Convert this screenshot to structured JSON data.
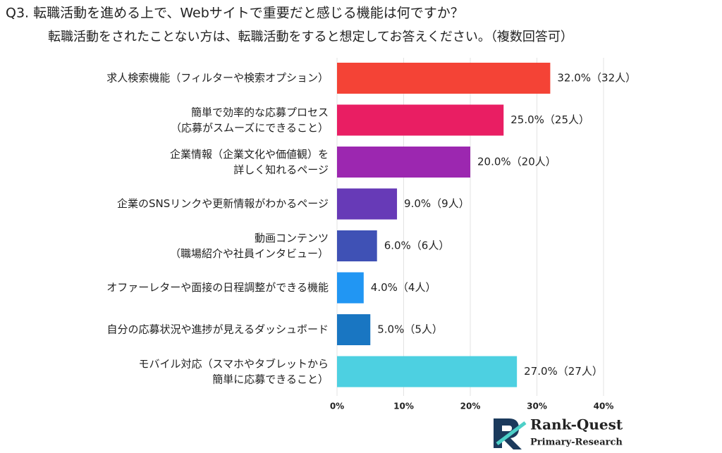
{
  "chart_data": {
    "type": "hbar",
    "title": "Q3. 転職活動を進める上で、Webサイトで重要だと感じる機能は何ですか？",
    "subtitle": "転職活動をされたことない方は、転職活動をすると想定してお答えください。（複数回答可）",
    "categories": [
      "求人検索機能（フィルターや検索オプション）",
      "簡単で効率的な応募プロセス\n（応募がスムーズにできること）",
      "企業情報（企業文化や価値観）を\n詳しく知れるページ",
      "企業のSNSリンクや更新情報がわかるページ",
      "動画コンテンツ\n（職場紹介や社員インタビュー）",
      "オファーレターや面接の日程調整ができる機能",
      "自分の応募状況や進捗が見えるダッシュボード",
      "モバイル対応（スマホやタブレットから\n簡単に応募できること）"
    ],
    "values": [
      32,
      25,
      20,
      9,
      6,
      4,
      5,
      27
    ],
    "value_labels": [
      "32.0%（32人）",
      "25.0%（25人）",
      "20.0%（20人）",
      "9.0%（9人）",
      "6.0%（6人）",
      "4.0%（4人）",
      "5.0%（5人）",
      "27.0%（27人）"
    ],
    "colors": [
      "#f44336",
      "#e91e63",
      "#9c27b0",
      "#673ab7",
      "#3f51b5",
      "#2196f3",
      "#1976c2",
      "#4dd0e1"
    ],
    "xlim": [
      0,
      40
    ],
    "xticks": [
      {
        "value": 0,
        "label": "0%"
      },
      {
        "value": 10,
        "label": "10%"
      },
      {
        "value": 20,
        "label": "20%"
      },
      {
        "value": 30,
        "label": "30%"
      },
      {
        "value": 40,
        "label": "40%"
      }
    ],
    "grid": true
  },
  "logo": {
    "name": "Rank-Quest",
    "tagline": "Primary-Research"
  }
}
